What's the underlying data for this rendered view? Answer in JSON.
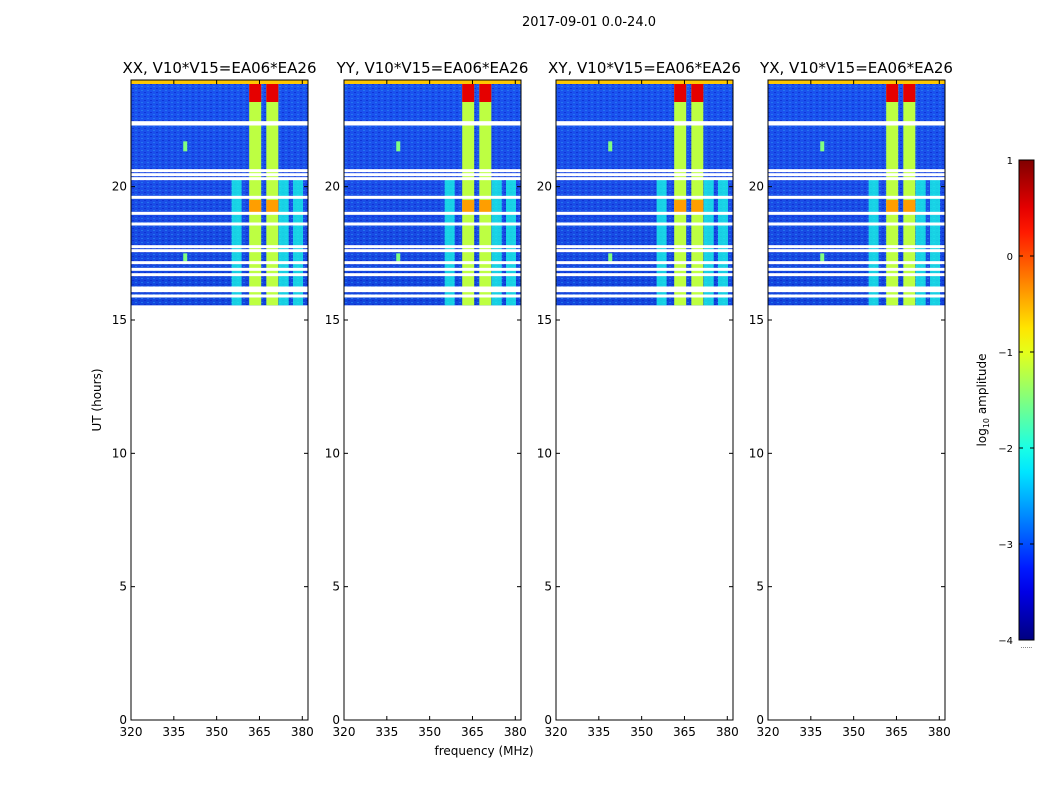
{
  "figure_title": "2017-09-01 0.0-24.0",
  "chart_data": {
    "type": "heatmap",
    "suptitle": "2017-09-01 0.0-24.0",
    "shared_xlabel": "frequency (MHz)",
    "ylabel": "UT (hours)",
    "xlim": [
      320,
      382
    ],
    "ylim": [
      0,
      24
    ],
    "xticks": [
      320,
      335,
      350,
      365,
      380
    ],
    "yticks": [
      0,
      5,
      10,
      15,
      20
    ],
    "data_range_hours": [
      15.55,
      24.0
    ],
    "panels": [
      {
        "title": "XX, V10*V15=EA06*EA26",
        "polarization": "XX"
      },
      {
        "title": "YY, V10*V15=EA06*EA26",
        "polarization": "YY"
      },
      {
        "title": "XY, V10*V15=EA06*EA26",
        "polarization": "XY"
      },
      {
        "title": "YX, V10*V15=EA06*EA26",
        "polarization": "YX"
      }
    ],
    "colormap": "jet",
    "colorbar": {
      "label": "log10 amplitude",
      "label_main": "log",
      "label_sub": "10",
      "label_tail": " amplitude",
      "range": [
        -4,
        1
      ],
      "ticks": [
        1,
        0,
        -1,
        -2,
        -3,
        -4
      ],
      "tick_labels": [
        "1",
        "0",
        "−1",
        "−2",
        "−3",
        "−4"
      ],
      "footnote": "......"
    },
    "flagged_rows_hours": [
      22.4,
      22.35,
      20.6,
      20.45,
      20.3,
      19.6,
      19.0,
      18.6,
      17.75,
      17.6,
      17.15,
      16.9,
      16.7,
      16.2,
      16.1,
      15.9
    ],
    "features": [
      {
        "description": "strong RFI channels",
        "freq_mhz": [
          363.5,
          369.5
        ],
        "log_amp": 0.5
      },
      {
        "description": "RFI band start",
        "freq_mhz": [
          361.0
        ],
        "log_amp": -1.5
      },
      {
        "description": "weak emission channels",
        "freq_mhz": [
          357,
          373.5,
          378.5
        ],
        "log_amp": -2.0
      },
      {
        "description": "narrow spike",
        "freq_mhz": [
          339
        ],
        "log_amp": -1.5
      }
    ]
  },
  "colors": {
    "axes": "#000000",
    "background": "#ffffff",
    "flag": "#ffffff",
    "jet_low": "#00007f",
    "jet_high": "#7f0000"
  }
}
